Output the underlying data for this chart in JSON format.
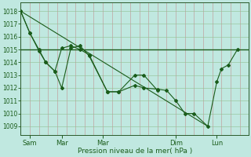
{
  "background_color": "#c0e8e0",
  "grid_color_v": "#c09090",
  "grid_color_h": "#90c090",
  "line_color": "#1a5c1a",
  "ylim": [
    1008.3,
    1018.7
  ],
  "xlim": [
    0,
    100
  ],
  "yticks": [
    1009,
    1010,
    1011,
    1012,
    1013,
    1014,
    1015,
    1016,
    1017,
    1018
  ],
  "xlabel": "Pression niveau de la mer( hPa )",
  "xtick_positions": [
    4,
    18,
    36,
    68,
    86
  ],
  "xtick_labels": [
    "Sam",
    "Mar",
    "Mar",
    "Dim",
    "Lun"
  ],
  "trend_x": [
    0,
    82
  ],
  "trend_y": [
    1018,
    1009.0
  ],
  "hline_x": [
    0,
    100
  ],
  "hline_y": [
    1015.0,
    1015.0
  ],
  "series_a_x": [
    0,
    4,
    8,
    11,
    15,
    18,
    22,
    26,
    30,
    38,
    43,
    50,
    54,
    60
  ],
  "series_a_y": [
    1018,
    1016.3,
    1015.0,
    1014.0,
    1013.3,
    1012.0,
    1015.1,
    1015.3,
    1014.5,
    1011.7,
    1011.7,
    1013.0,
    1013.0,
    1011.8
  ],
  "series_b_x": [
    0,
    4,
    8,
    11,
    15,
    18,
    22,
    26,
    30,
    38,
    43,
    50,
    54,
    60,
    64,
    68,
    72,
    76,
    82,
    86,
    88,
    91,
    95
  ],
  "series_b_y": [
    1018,
    1016.3,
    1014.9,
    1014.0,
    1013.3,
    1015.1,
    1015.3,
    1015.0,
    1014.6,
    1011.7,
    1011.7,
    1012.2,
    1012.0,
    1011.9,
    1011.8,
    1011.0,
    1010.0,
    1010.0,
    1009.0,
    1012.5,
    1013.5,
    1013.8,
    1015.0
  ]
}
